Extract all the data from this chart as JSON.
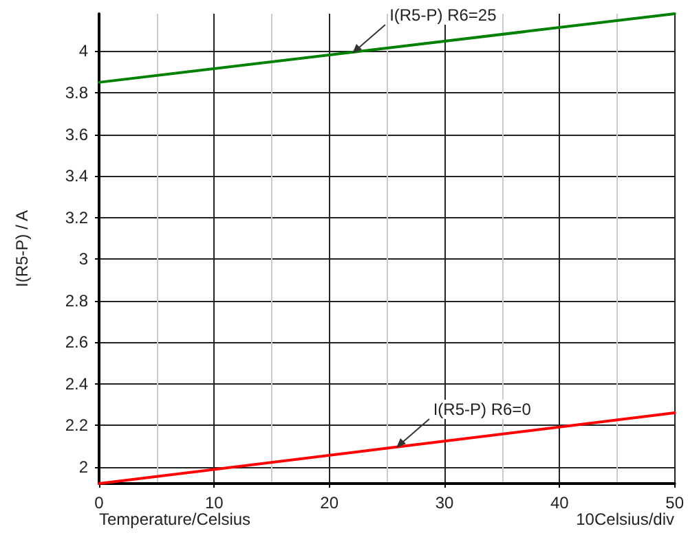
{
  "chart_data": {
    "type": "line",
    "xlabel": "Temperature/Celsius",
    "ylabel": "I(R5-P) / A",
    "xlim": [
      0,
      50
    ],
    "xticks": [
      0,
      10,
      20,
      30,
      40,
      50
    ],
    "ylim": [
      1.92,
      4.18
    ],
    "yticks": [
      2,
      2.2,
      2.4,
      2.6,
      2.8,
      3,
      3.2,
      3.4,
      3.6,
      3.8,
      4
    ],
    "grid": true,
    "marker": "none",
    "line_style": "solid",
    "series": [
      {
        "color": "#008000",
        "x": [
          0,
          25,
          50
        ],
        "values": [
          3.85,
          4.015,
          4.18
        ]
      },
      {
        "color": "#ff0000",
        "x": [
          0,
          25,
          50
        ],
        "values": [
          1.92,
          2.09,
          2.26
        ]
      }
    ],
    "annotations": [
      {
        "text": "I(R5-P) R6=25",
        "x": 22,
        "y": 3.99
      },
      {
        "text": "I(R5-P) R6=0",
        "x": 25.8,
        "y": 2.09
      },
      "10Celsius/div"
    ]
  }
}
